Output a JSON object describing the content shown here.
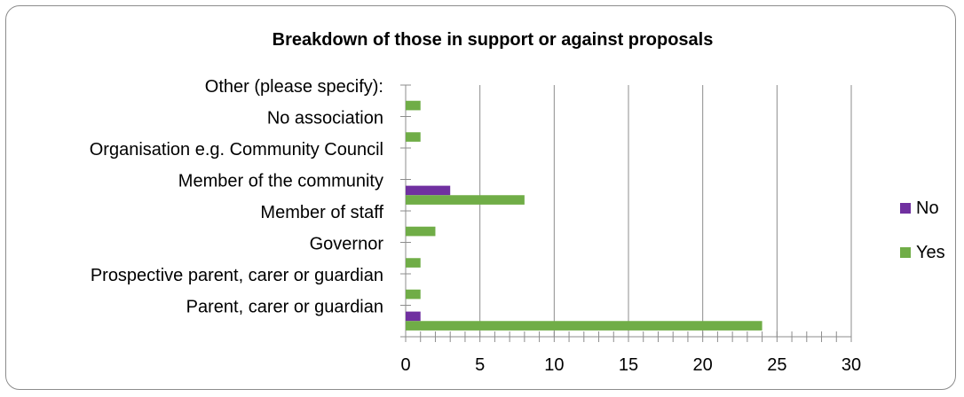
{
  "chart_data": {
    "type": "bar",
    "orientation": "horizontal",
    "title": "Breakdown of those in support or against proposals",
    "categories": [
      "Parent, carer or guardian",
      "Prospective parent, carer or guardian",
      "Governor",
      "Member of staff",
      "Member of the community",
      "Organisation e.g. Community Council",
      "No association",
      "Other (please specify):"
    ],
    "series": [
      {
        "name": "No",
        "color": "#7030a0",
        "values": [
          1,
          0,
          0,
          0,
          3,
          0,
          0,
          0
        ]
      },
      {
        "name": "Yes",
        "color": "#70ad47",
        "values": [
          24,
          1,
          1,
          2,
          8,
          0,
          1,
          1
        ]
      }
    ],
    "xlim": [
      0,
      30
    ],
    "xticks": [
      "0",
      "5",
      "10",
      "15",
      "20",
      "25",
      "30"
    ],
    "grid": true,
    "legend_position": "right"
  }
}
